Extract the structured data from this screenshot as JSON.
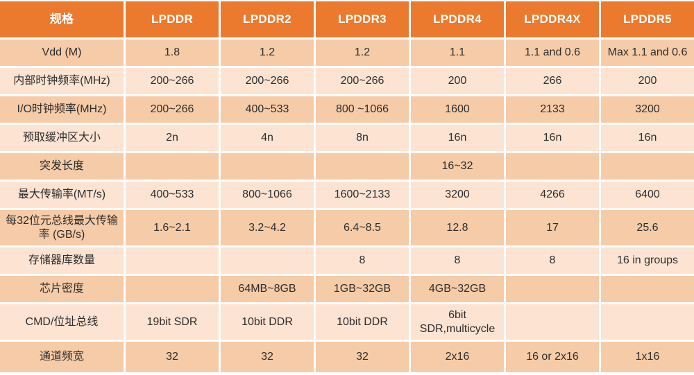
{
  "colors": {
    "header_bg": "#EB7A2F",
    "header_text": "#FFFFFF",
    "row_dark_bg": "#F6CBA7",
    "row_light_bg": "#FCE3D2",
    "grid_line": "#FFFFFF",
    "body_text": "#2D2D2D"
  },
  "chart_data": {
    "type": "table",
    "title": "",
    "columns": [
      "规格",
      "LPDDR",
      "LPDDR2",
      "LPDDR3",
      "LPDDR4",
      "LPDDR4X",
      "LPDDR5"
    ],
    "rows": [
      {
        "label": "Vdd (M)",
        "values": [
          "1.8",
          "1.2",
          "1.2",
          "1.1",
          "1.1 and 0.6",
          "Max 1.1 and 0.6"
        ]
      },
      {
        "label": "内部时钟频率(MHz)",
        "values": [
          "200~266",
          "200~266",
          "200~266",
          "200",
          "266",
          "200"
        ]
      },
      {
        "label": "I/O时钟频率(MHz)",
        "values": [
          "200~266",
          "400~533",
          "800 ~1066",
          "1600",
          "2133",
          "3200"
        ]
      },
      {
        "label": "预取缓冲区大小",
        "values": [
          "2n",
          "4n",
          "8n",
          "16n",
          "16n",
          "16n"
        ]
      },
      {
        "label": "突发长度",
        "values": [
          "",
          "",
          "",
          "16~32",
          "",
          ""
        ]
      },
      {
        "label": "最大传输率(MT/s)",
        "values": [
          "400~533",
          "800~1066",
          "1600~2133",
          "3200",
          "4266",
          "6400"
        ]
      },
      {
        "label": "每32位元总线最大传输率 (GB/s)",
        "values": [
          "1.6~2.1",
          "3.2~4.2",
          "6.4~8.5",
          "12.8",
          "17",
          "25.6"
        ]
      },
      {
        "label": "存储器库数量",
        "values": [
          "",
          "",
          "8",
          "8",
          "8",
          "16 in groups"
        ]
      },
      {
        "label": "芯片密度",
        "values": [
          "",
          "64MB~8GB",
          "1GB~32GB",
          "4GB~32GB",
          "",
          ""
        ]
      },
      {
        "label": "CMD/位址总线",
        "values": [
          "19bit SDR",
          "10bit DDR",
          "10bit DDR",
          "6bit SDR,multicycle",
          "",
          ""
        ]
      },
      {
        "label": "通道频宽",
        "values": [
          "32",
          "32",
          "32",
          "2x16",
          "16 or 2x16",
          "1x16"
        ]
      }
    ]
  }
}
